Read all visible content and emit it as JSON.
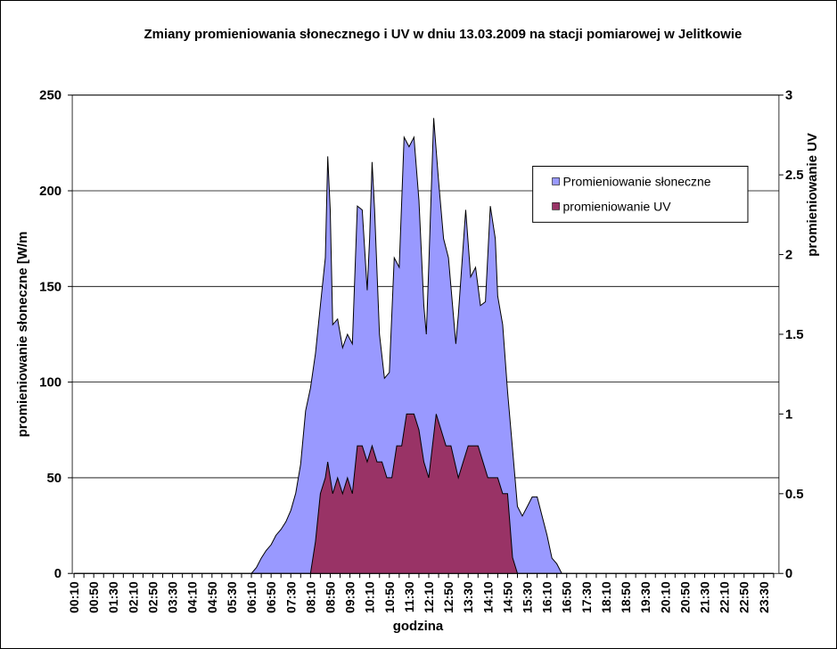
{
  "chart_data": {
    "type": "area",
    "title": "Zmiany promieniowania słonecznego i UV w dniu 13.03.2009 na stacji pomiarowej w Jelitkowie",
    "xlabel": "godzina",
    "ylabel_left": "promieniowanie słoneczne [W/m",
    "ylabel_right": "promieniowanie UV",
    "y_left_range": [
      0,
      250
    ],
    "y_left_ticks": [
      "0",
      "50",
      "100",
      "150",
      "200",
      "250"
    ],
    "y_right_range": [
      0,
      3
    ],
    "y_right_ticks": [
      "0",
      "0.5",
      "1",
      "1.5",
      "2",
      "2.5",
      "3"
    ],
    "x_ticks": [
      "00:10",
      "00:50",
      "01:30",
      "02:10",
      "02:50",
      "03:30",
      "04:10",
      "04:50",
      "05:30",
      "06:10",
      "06:50",
      "07:30",
      "08:10",
      "08:50",
      "09:30",
      "10:10",
      "10:50",
      "11:30",
      "12:10",
      "12:50",
      "13:30",
      "14:10",
      "14:50",
      "15:30",
      "16:10",
      "16:50",
      "17:30",
      "18:10",
      "18:50",
      "19:30",
      "20:10",
      "20:50",
      "21:30",
      "22:10",
      "22:50",
      "23:30"
    ],
    "x_minutes_range": [
      10,
      1430
    ],
    "gridlines": "horizontal",
    "legend_position": "top-right",
    "series": [
      {
        "name": "Promieniowanie słoneczne",
        "axis": "left",
        "color": "#9999ff",
        "points": [
          [
            10,
            0
          ],
          [
            370,
            0
          ],
          [
            380,
            3
          ],
          [
            390,
            8
          ],
          [
            400,
            12
          ],
          [
            410,
            15
          ],
          [
            420,
            20
          ],
          [
            430,
            23
          ],
          [
            440,
            27
          ],
          [
            450,
            33
          ],
          [
            460,
            42
          ],
          [
            470,
            57
          ],
          [
            480,
            85
          ],
          [
            490,
            97
          ],
          [
            500,
            115
          ],
          [
            510,
            140
          ],
          [
            520,
            165
          ],
          [
            525,
            218
          ],
          [
            530,
            190
          ],
          [
            535,
            130
          ],
          [
            545,
            133
          ],
          [
            555,
            118
          ],
          [
            565,
            125
          ],
          [
            575,
            120
          ],
          [
            585,
            192
          ],
          [
            595,
            190
          ],
          [
            605,
            148
          ],
          [
            610,
            175
          ],
          [
            615,
            215
          ],
          [
            620,
            190
          ],
          [
            630,
            125
          ],
          [
            640,
            102
          ],
          [
            650,
            105
          ],
          [
            660,
            165
          ],
          [
            670,
            160
          ],
          [
            680,
            228
          ],
          [
            690,
            223
          ],
          [
            700,
            228
          ],
          [
            710,
            195
          ],
          [
            720,
            140
          ],
          [
            725,
            125
          ],
          [
            730,
            160
          ],
          [
            740,
            238
          ],
          [
            750,
            205
          ],
          [
            760,
            175
          ],
          [
            770,
            165
          ],
          [
            785,
            120
          ],
          [
            790,
            135
          ],
          [
            805,
            190
          ],
          [
            815,
            155
          ],
          [
            825,
            160
          ],
          [
            835,
            140
          ],
          [
            845,
            142
          ],
          [
            855,
            192
          ],
          [
            865,
            175
          ],
          [
            870,
            145
          ],
          [
            880,
            130
          ],
          [
            890,
            95
          ],
          [
            900,
            65
          ],
          [
            910,
            35
          ],
          [
            920,
            30
          ],
          [
            930,
            35
          ],
          [
            940,
            40
          ],
          [
            950,
            40
          ],
          [
            960,
            30
          ],
          [
            970,
            20
          ],
          [
            980,
            8
          ],
          [
            990,
            5
          ],
          [
            1000,
            0
          ],
          [
            1430,
            0
          ]
        ]
      },
      {
        "name": "promieniowanie UV",
        "axis": "right",
        "color": "#993366",
        "points": [
          [
            10,
            0
          ],
          [
            490,
            0
          ],
          [
            500,
            0.2
          ],
          [
            510,
            0.5
          ],
          [
            520,
            0.6
          ],
          [
            525,
            0.7
          ],
          [
            530,
            0.6
          ],
          [
            535,
            0.5
          ],
          [
            545,
            0.6
          ],
          [
            555,
            0.5
          ],
          [
            565,
            0.6
          ],
          [
            575,
            0.5
          ],
          [
            585,
            0.8
          ],
          [
            595,
            0.8
          ],
          [
            605,
            0.7
          ],
          [
            615,
            0.8
          ],
          [
            625,
            0.7
          ],
          [
            635,
            0.7
          ],
          [
            645,
            0.6
          ],
          [
            655,
            0.6
          ],
          [
            665,
            0.8
          ],
          [
            675,
            0.8
          ],
          [
            685,
            1.0
          ],
          [
            700,
            1.0
          ],
          [
            710,
            0.9
          ],
          [
            720,
            0.7
          ],
          [
            730,
            0.6
          ],
          [
            745,
            1.0
          ],
          [
            755,
            0.9
          ],
          [
            765,
            0.8
          ],
          [
            775,
            0.8
          ],
          [
            790,
            0.6
          ],
          [
            800,
            0.7
          ],
          [
            810,
            0.8
          ],
          [
            830,
            0.8
          ],
          [
            840,
            0.7
          ],
          [
            850,
            0.6
          ],
          [
            860,
            0.6
          ],
          [
            870,
            0.6
          ],
          [
            880,
            0.5
          ],
          [
            890,
            0.5
          ],
          [
            900,
            0.1
          ],
          [
            910,
            0
          ],
          [
            1430,
            0
          ]
        ]
      }
    ]
  }
}
